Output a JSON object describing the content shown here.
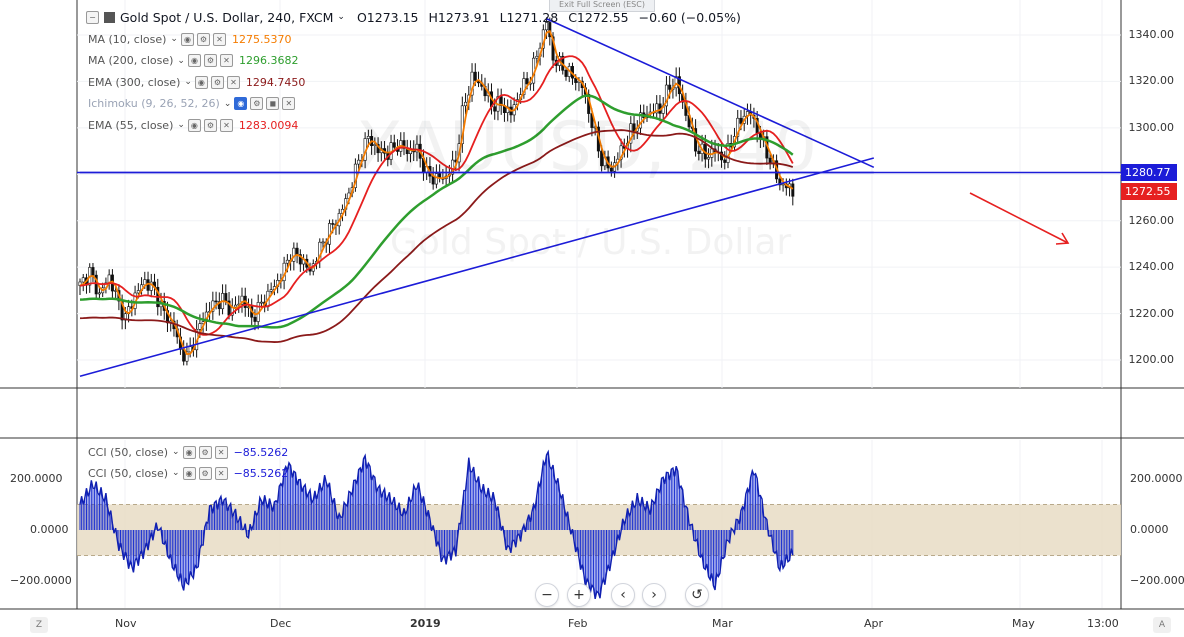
{
  "header": {
    "symbol": "Gold Spot / U.S. Dollar, 240, FXCM",
    "open": "O1273.15",
    "high": "H1273.91",
    "low": "L1271.28",
    "close": "C1272.55",
    "change": "−0.60 (−0.05%)",
    "exit_fullscreen": "Exit Full Screen (ESC)"
  },
  "watermark": {
    "symbol": "XAUUSD, 240",
    "name": "Gold Spot / U.S. Dollar"
  },
  "indicators": [
    {
      "label": "MA (10, close)",
      "value": "1275.5370",
      "color": "#f57c00"
    },
    {
      "label": "MA (200, close)",
      "value": "1296.3682",
      "color": "#2e9e2e"
    },
    {
      "label": "EMA (300, close)",
      "value": "1294.7450",
      "color": "#8b1a1a"
    },
    {
      "label": "Ichimoku (9, 26, 52, 26)",
      "value": "",
      "color": "#9aa3b5"
    },
    {
      "label": "EMA (55, close)",
      "value": "1283.0094",
      "color": "#e62020"
    }
  ],
  "cci_legends": [
    {
      "label": "CCI (50, close)",
      "value": "−85.5262"
    },
    {
      "label": "CCI (50, close)",
      "value": "−85.5262"
    }
  ],
  "price_axis": [
    "1340.00",
    "1320.00",
    "1300.00",
    "1280.00",
    "1260.00",
    "1240.00",
    "1220.00",
    "1200.00"
  ],
  "cci_axis": [
    "200.0000",
    "0.0000",
    "−200.0000"
  ],
  "time_axis": [
    "Nov",
    "Dec",
    "2019",
    "Feb",
    "Mar",
    "Apr",
    "May",
    "13:00"
  ],
  "price_badges": {
    "level": "1280.77",
    "last": "1272.55"
  },
  "controls": [
    "−",
    "+",
    "‹",
    "›",
    "↺"
  ],
  "corners": {
    "left": "Z",
    "right": "A"
  },
  "colors": {
    "candle_up": "#1f1f1f",
    "candle_down": "#1f1f1f",
    "trendline": "#1c1cd8",
    "arrow": "#e62020",
    "cci_fill": "#1a2fd0",
    "cci_band": "#e8dcc4"
  },
  "chart_data": {
    "type": "line",
    "title": "Gold Spot / U.S. Dollar, 240, FXCM",
    "ylim": [
      1190,
      1348
    ],
    "price_labels": [
      1340,
      1320,
      1300,
      1280,
      1260,
      1240,
      1220,
      1200
    ],
    "price_path": [
      [
        0,
        1232
      ],
      [
        3,
        1238
      ],
      [
        6,
        1228
      ],
      [
        9,
        1236
      ],
      [
        12,
        1224
      ],
      [
        14,
        1218
      ],
      [
        17,
        1228
      ],
      [
        20,
        1234
      ],
      [
        23,
        1230
      ],
      [
        26,
        1220
      ],
      [
        29,
        1214
      ],
      [
        31,
        1204
      ],
      [
        33,
        1201
      ],
      [
        35,
        1208
      ],
      [
        38,
        1218
      ],
      [
        41,
        1224
      ],
      [
        44,
        1226
      ],
      [
        47,
        1221
      ],
      [
        50,
        1227
      ],
      [
        53,
        1218
      ],
      [
        56,
        1224
      ],
      [
        59,
        1230
      ],
      [
        62,
        1236
      ],
      [
        65,
        1246
      ],
      [
        68,
        1244
      ],
      [
        71,
        1238
      ],
      [
        74,
        1248
      ],
      [
        77,
        1256
      ],
      [
        80,
        1262
      ],
      [
        83,
        1272
      ],
      [
        86,
        1286
      ],
      [
        89,
        1296
      ],
      [
        92,
        1290
      ],
      [
        95,
        1289
      ],
      [
        98,
        1293
      ],
      [
        101,
        1290
      ],
      [
        104,
        1291
      ],
      [
        107,
        1280
      ],
      [
        110,
        1278
      ],
      [
        113,
        1279
      ],
      [
        116,
        1286
      ],
      [
        118,
        1306
      ],
      [
        121,
        1322
      ],
      [
        124,
        1318
      ],
      [
        127,
        1310
      ],
      [
        130,
        1310
      ],
      [
        133,
        1306
      ],
      [
        136,
        1316
      ],
      [
        139,
        1322
      ],
      [
        142,
        1336
      ],
      [
        144,
        1346
      ],
      [
        146,
        1330
      ],
      [
        149,
        1326
      ],
      [
        152,
        1322
      ],
      [
        155,
        1318
      ],
      [
        158,
        1302
      ],
      [
        161,
        1286
      ],
      [
        164,
        1282
      ],
      [
        167,
        1290
      ],
      [
        170,
        1298
      ],
      [
        173,
        1304
      ],
      [
        176,
        1307
      ],
      [
        179,
        1308
      ],
      [
        182,
        1318
      ],
      [
        184,
        1320
      ],
      [
        187,
        1306
      ],
      [
        190,
        1292
      ],
      [
        193,
        1288
      ],
      [
        196,
        1290
      ],
      [
        199,
        1286
      ],
      [
        202,
        1298
      ],
      [
        205,
        1306
      ],
      [
        207,
        1306
      ],
      [
        210,
        1296
      ],
      [
        213,
        1286
      ],
      [
        216,
        1276
      ],
      [
        219,
        1274
      ],
      [
        220,
        1272.55
      ]
    ],
    "trendlines": [
      {
        "name": "upper",
        "points": [
          [
            144,
            1347
          ],
          [
            245,
            1283
          ]
        ]
      },
      {
        "name": "lower",
        "points": [
          [
            0,
            1193
          ],
          [
            245,
            1287
          ]
        ]
      },
      {
        "name": "horizontal",
        "points": [
          [
            0,
            1280.77
          ],
          [
            245,
            1280.77
          ]
        ]
      }
    ],
    "cci_ylim": [
      -300,
      330
    ],
    "cci_labels": [
      200,
      0,
      -200
    ],
    "cci_band": [
      -100,
      100
    ],
    "cci_series": [
      [
        0,
        100
      ],
      [
        4,
        180
      ],
      [
        8,
        120
      ],
      [
        12,
        -60
      ],
      [
        16,
        -150
      ],
      [
        20,
        -80
      ],
      [
        24,
        20
      ],
      [
        28,
        -120
      ],
      [
        32,
        -220
      ],
      [
        36,
        -150
      ],
      [
        40,
        80
      ],
      [
        44,
        120
      ],
      [
        48,
        60
      ],
      [
        52,
        -20
      ],
      [
        56,
        120
      ],
      [
        60,
        90
      ],
      [
        64,
        260
      ],
      [
        68,
        180
      ],
      [
        72,
        120
      ],
      [
        76,
        200
      ],
      [
        80,
        40
      ],
      [
        84,
        160
      ],
      [
        88,
        280
      ],
      [
        92,
        160
      ],
      [
        96,
        120
      ],
      [
        100,
        60
      ],
      [
        104,
        180
      ],
      [
        108,
        40
      ],
      [
        112,
        -120
      ],
      [
        116,
        -80
      ],
      [
        120,
        260
      ],
      [
        124,
        160
      ],
      [
        128,
        120
      ],
      [
        132,
        -80
      ],
      [
        136,
        -20
      ],
      [
        140,
        80
      ],
      [
        144,
        300
      ],
      [
        148,
        160
      ],
      [
        152,
        -20
      ],
      [
        156,
        -200
      ],
      [
        160,
        -260
      ],
      [
        164,
        -120
      ],
      [
        168,
        40
      ],
      [
        172,
        120
      ],
      [
        176,
        80
      ],
      [
        180,
        200
      ],
      [
        184,
        240
      ],
      [
        188,
        40
      ],
      [
        192,
        -120
      ],
      [
        196,
        -220
      ],
      [
        200,
        -40
      ],
      [
        204,
        60
      ],
      [
        208,
        240
      ],
      [
        212,
        20
      ],
      [
        216,
        -150
      ],
      [
        220,
        -90
      ]
    ]
  }
}
